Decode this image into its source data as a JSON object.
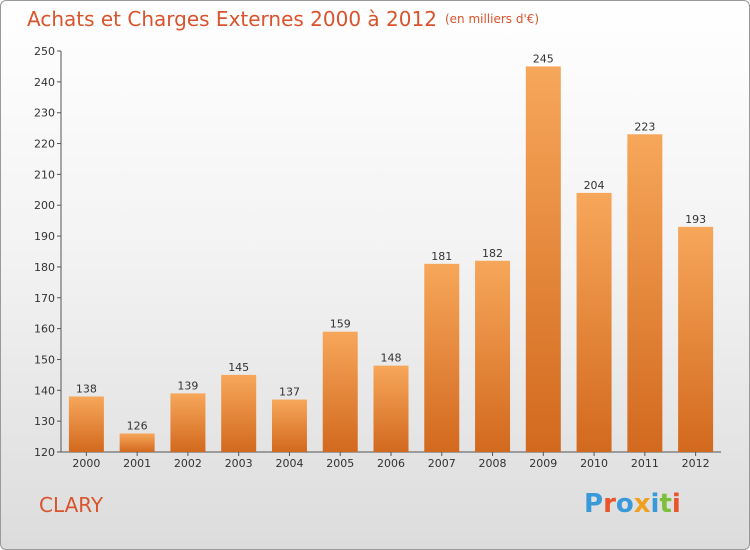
{
  "header": {
    "title": "Achats et Charges Externes 2000 à 2012",
    "unit": "(en milliers d'€)"
  },
  "footer": {
    "place": "CLARY",
    "logo_text": "Proxiti",
    "logo_colors": [
      "#3a9ad9",
      "#e8542c",
      "#3a9ad9",
      "#f0a020",
      "#3a9ad9",
      "#7cbf3a",
      "#e8542c"
    ]
  },
  "colors": {
    "title": "#d9532c",
    "bar_top": "#f7a75a",
    "bar_bottom": "#d2691e"
  },
  "chart_data": {
    "type": "bar",
    "title": "Achats et Charges Externes 2000 à 2012",
    "subtitle": "(en milliers d'€)",
    "xlabel": "",
    "ylabel": "",
    "categories": [
      "2000",
      "2001",
      "2002",
      "2003",
      "2004",
      "2005",
      "2006",
      "2007",
      "2008",
      "2009",
      "2010",
      "2011",
      "2012"
    ],
    "values": [
      138,
      126,
      139,
      145,
      137,
      159,
      148,
      181,
      182,
      245,
      204,
      223,
      193
    ],
    "ylim": [
      120,
      250
    ],
    "yticks": [
      120,
      130,
      140,
      150,
      160,
      170,
      180,
      190,
      200,
      210,
      220,
      230,
      240,
      250
    ],
    "grid": false,
    "data_labels": true
  }
}
